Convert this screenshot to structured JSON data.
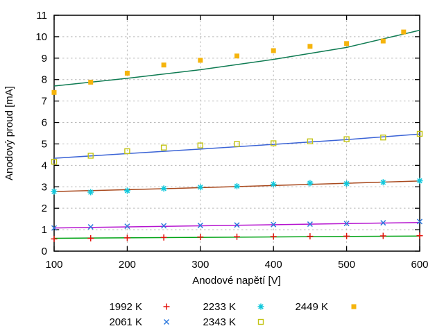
{
  "chart_data": {
    "type": "scatter",
    "title": "",
    "xlabel": "Anodové napětí [V]",
    "ylabel": "Anodový proud [mA]",
    "xlim": [
      100,
      600
    ],
    "ylim": [
      0,
      11
    ],
    "xticks": [
      100,
      200,
      300,
      400,
      500,
      600
    ],
    "yticks": [
      0,
      1,
      2,
      3,
      4,
      5,
      6,
      7,
      8,
      9,
      10,
      11
    ],
    "grid": true,
    "grid_color": "#b9b9b9",
    "axis_color": "#000000",
    "legend_position": "below-plot, two rows, column-major",
    "series": [
      {
        "name": "1992 K",
        "marker": "plus",
        "marker_color": "#e4150e",
        "line_color": "#00a314",
        "x": [
          100,
          150,
          200,
          250,
          300,
          350,
          400,
          450,
          500,
          550,
          600
        ],
        "y": [
          0.57,
          0.6,
          0.62,
          0.64,
          0.66,
          0.67,
          0.68,
          0.69,
          0.7,
          0.71,
          0.72
        ],
        "fit_x": [
          100,
          600
        ],
        "fit_y": [
          0.6,
          0.705
        ]
      },
      {
        "name": "2061 K",
        "marker": "cross",
        "marker_color": "#2f7ade",
        "line_color": "#b513cf",
        "x": [
          100,
          150,
          200,
          250,
          300,
          350,
          400,
          450,
          500,
          550,
          600
        ],
        "y": [
          1.08,
          1.13,
          1.16,
          1.18,
          1.2,
          1.22,
          1.24,
          1.26,
          1.29,
          1.32,
          1.38
        ],
        "fit_x": [
          100,
          600
        ],
        "fit_y": [
          1.08,
          1.335
        ]
      },
      {
        "name": "2233 K",
        "marker": "asterisk",
        "marker_color": "#10c8dc",
        "line_color": "#a8481c",
        "x": [
          100,
          150,
          200,
          250,
          300,
          350,
          400,
          450,
          500,
          550,
          600
        ],
        "y": [
          2.78,
          2.75,
          2.82,
          2.92,
          2.98,
          3.03,
          3.12,
          3.17,
          3.15,
          3.21,
          3.28
        ],
        "fit_x": [
          100,
          250,
          400,
          600
        ],
        "fit_y": [
          2.78,
          2.91,
          3.06,
          3.27
        ]
      },
      {
        "name": "2343 K",
        "marker": "open-square",
        "marker_color": "#c3c414",
        "line_color": "#3a63d6",
        "x": [
          100,
          150,
          200,
          250,
          300,
          350,
          400,
          450,
          500,
          550,
          600
        ],
        "y": [
          4.17,
          4.45,
          4.66,
          4.83,
          4.93,
          5.0,
          5.03,
          5.12,
          5.22,
          5.3,
          5.47
        ],
        "fit_x": [
          100,
          200,
          300,
          400,
          500,
          600
        ],
        "fit_y": [
          4.33,
          4.55,
          4.76,
          4.98,
          5.2,
          5.46
        ]
      },
      {
        "name": "2449 K",
        "marker": "filled-square",
        "marker_color": "#f5b40d",
        "line_color": "#0e7b52",
        "x": [
          100,
          150,
          200,
          250,
          300,
          350,
          400,
          450,
          500,
          550,
          578
        ],
        "y": [
          7.4,
          7.88,
          8.3,
          8.68,
          8.9,
          9.1,
          9.35,
          9.55,
          9.68,
          9.8,
          10.22
        ],
        "fit_x": [
          100,
          200,
          300,
          400,
          500,
          600
        ],
        "fit_y": [
          7.7,
          8.06,
          8.46,
          8.94,
          9.5,
          10.3
        ]
      }
    ],
    "legend_rows": [
      [
        0,
        2,
        4
      ],
      [
        1,
        3
      ]
    ]
  }
}
